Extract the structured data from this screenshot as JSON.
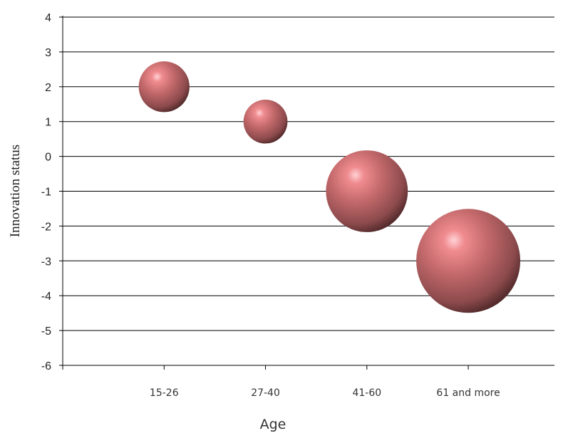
{
  "chart_data": {
    "type": "bubble",
    "title": "",
    "xlabel": "Age",
    "ylabel": "Innovation status",
    "categories": [
      "15-26",
      "27-40",
      "41-60",
      "61 and more"
    ],
    "ylim": [
      -6,
      4
    ],
    "yticks": [
      4,
      3,
      2,
      1,
      0,
      -1,
      -2,
      -3,
      -4,
      -5,
      -6
    ],
    "grid": "horizontal",
    "legend": "none",
    "bubble_color": "#c06a66",
    "series": [
      {
        "points": [
          {
            "x": "15-26",
            "y": 2,
            "size": 1.0
          },
          {
            "x": "27-40",
            "y": 1,
            "size": 0.75
          },
          {
            "x": "41-60",
            "y": -1,
            "size": 2.6
          },
          {
            "x": "61 and more",
            "y": -3,
            "size": 4.2
          }
        ]
      }
    ]
  }
}
